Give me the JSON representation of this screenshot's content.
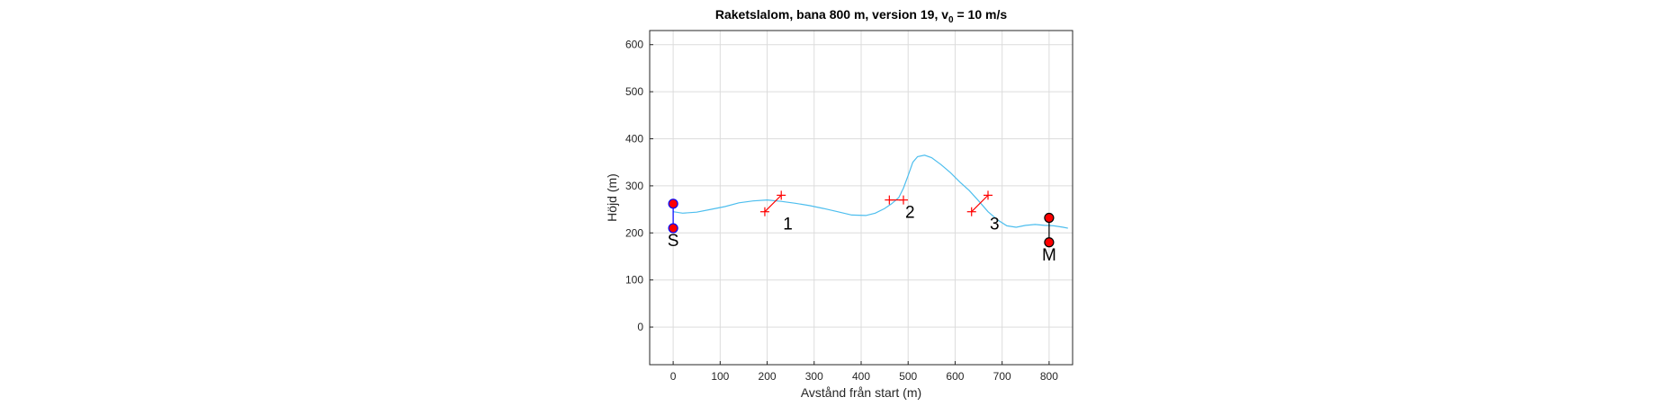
{
  "chart_data": {
    "type": "line",
    "title_main": "Raketslalom, bana 800 m, version 19, v",
    "title_sub": "0",
    "title_tail": " = 10 m/s",
    "xlabel": "Avstånd från start (m)",
    "ylabel": "Höjd (m)",
    "xlim": [
      -50,
      850
    ],
    "ylim": [
      -80,
      630
    ],
    "xticks": [
      0,
      100,
      200,
      300,
      400,
      500,
      600,
      700,
      800
    ],
    "yticks": [
      0,
      100,
      200,
      300,
      400,
      500,
      600
    ],
    "grid": true,
    "colors": {
      "trajectory": "#4dbeee",
      "gate": "#ff0000",
      "start": "#0000ff",
      "finish": "#000000",
      "marker_fill": "#ff0000",
      "axes": "#262626",
      "grid": "#dcdcdc"
    },
    "trajectory": {
      "x": [
        0,
        20,
        50,
        80,
        110,
        140,
        170,
        200,
        230,
        260,
        290,
        320,
        350,
        380,
        410,
        430,
        450,
        465,
        480,
        490,
        500,
        510,
        520,
        535,
        550,
        570,
        590,
        610,
        630,
        650,
        670,
        690,
        710,
        730,
        750,
        770,
        790,
        810,
        830,
        840
      ],
      "y": [
        245,
        242,
        244,
        250,
        256,
        264,
        268,
        270,
        267,
        263,
        258,
        252,
        245,
        238,
        237,
        242,
        252,
        262,
        275,
        295,
        322,
        350,
        362,
        365,
        360,
        345,
        328,
        308,
        290,
        268,
        245,
        228,
        215,
        212,
        216,
        218,
        216,
        215,
        212,
        210
      ]
    },
    "start": {
      "label": "S",
      "x": 0,
      "y_top": 262,
      "y_bottom": 210
    },
    "finish": {
      "label": "M",
      "x": 800,
      "y_top": 232,
      "y_bottom": 180
    },
    "gates": [
      {
        "label": "1",
        "x1": 195,
        "y1": 245,
        "x2": 230,
        "y2": 280
      },
      {
        "label": "2",
        "x1": 460,
        "y1": 270,
        "x2": 490,
        "y2": 270
      },
      {
        "label": "3",
        "x1": 635,
        "y1": 245,
        "x2": 670,
        "y2": 280
      }
    ]
  }
}
